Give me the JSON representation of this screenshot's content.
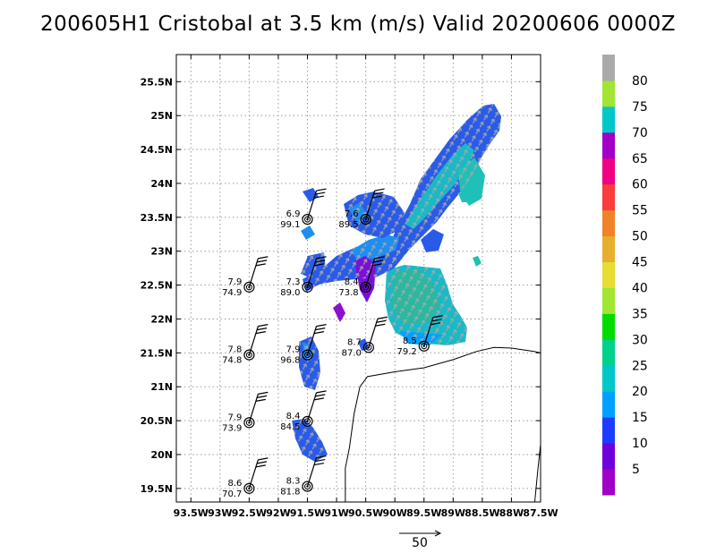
{
  "title": "200605H1 Cristobal at 3.5 km (m/s) Valid 20200606 0000Z",
  "chart_data": {
    "type": "map",
    "lon_range": [
      -93.75,
      -87.5
    ],
    "lat_range": [
      19.3,
      25.9
    ],
    "grid": true,
    "x_ticks": [
      {
        "lon": -93.5,
        "label": "93.5W"
      },
      {
        "lon": -93.0,
        "label": "93W"
      },
      {
        "lon": -92.5,
        "label": "92.5W"
      },
      {
        "lon": -92.0,
        "label": "92W"
      },
      {
        "lon": -91.5,
        "label": "91.5W"
      },
      {
        "lon": -91.0,
        "label": "91W"
      },
      {
        "lon": -90.5,
        "label": "90.5W"
      },
      {
        "lon": -90.0,
        "label": "90W"
      },
      {
        "lon": -89.5,
        "label": "89.5W"
      },
      {
        "lon": -89.0,
        "label": "89W"
      },
      {
        "lon": -88.5,
        "label": "88.5W"
      },
      {
        "lon": -88.0,
        "label": "88W"
      },
      {
        "lon": -87.5,
        "label": "87.5W"
      }
    ],
    "y_ticks": [
      {
        "lat": 19.5,
        "label": "19.5N"
      },
      {
        "lat": 20.0,
        "label": "20N"
      },
      {
        "lat": 20.5,
        "label": "20.5N"
      },
      {
        "lat": 21.0,
        "label": "21N"
      },
      {
        "lat": 21.5,
        "label": "21.5N"
      },
      {
        "lat": 22.0,
        "label": "22N"
      },
      {
        "lat": 22.5,
        "label": "22.5N"
      },
      {
        "lat": 23.0,
        "label": "23N"
      },
      {
        "lat": 23.5,
        "label": "23.5N"
      },
      {
        "lat": 24.0,
        "label": "24N"
      },
      {
        "lat": 24.5,
        "label": "24.5N"
      },
      {
        "lat": 25.0,
        "label": "25N"
      },
      {
        "lat": 25.5,
        "label": "25.5N"
      }
    ],
    "colorbar": {
      "labels": [
        "5",
        "10",
        "15",
        "20",
        "25",
        "30",
        "35",
        "40",
        "45",
        "50",
        "55",
        "60",
        "65",
        "70",
        "75",
        "80"
      ],
      "colors": [
        "#a000c8",
        "#6e00dc",
        "#1e3cff",
        "#00a0ff",
        "#00c8c8",
        "#00d28c",
        "#00dc00",
        "#a0e632",
        "#e6dc32",
        "#e6af2d",
        "#f08228",
        "#fa3c3c",
        "#f00082",
        "#a000c8",
        "#00c8c8",
        "#a0e632",
        "#aaaaaa"
      ]
    },
    "observations": [
      {
        "lat": 23.47,
        "lon": -91.5,
        "speed": "6.9",
        "pressure": "99.1"
      },
      {
        "lat": 23.47,
        "lon": -90.5,
        "speed": "7.6",
        "pressure": "89.5"
      },
      {
        "lat": 22.47,
        "lon": -92.5,
        "speed": "7.9",
        "pressure": "74.9"
      },
      {
        "lat": 22.47,
        "lon": -91.5,
        "speed": "7.3",
        "pressure": "89.0"
      },
      {
        "lat": 22.47,
        "lon": -90.5,
        "speed": "8.4",
        "pressure": "73.8"
      },
      {
        "lat": 21.47,
        "lon": -92.5,
        "speed": "7.8",
        "pressure": "74.8"
      },
      {
        "lat": 21.47,
        "lon": -91.5,
        "speed": "7.9",
        "pressure": "96.8"
      },
      {
        "lat": 21.58,
        "lon": -90.45,
        "speed": "8.7",
        "pressure": "87.0"
      },
      {
        "lat": 21.6,
        "lon": -89.5,
        "speed": "8.5",
        "pressure": "79.2"
      },
      {
        "lat": 20.47,
        "lon": -92.5,
        "speed": "7.9",
        "pressure": "73.9"
      },
      {
        "lat": 20.49,
        "lon": -91.5,
        "speed": "8.4",
        "pressure": "84.5"
      },
      {
        "lat": 19.5,
        "lon": -92.5,
        "speed": "8.6",
        "pressure": "70.7"
      },
      {
        "lat": 19.53,
        "lon": -91.5,
        "speed": "8.3",
        "pressure": "81.8"
      }
    ],
    "coastline": [
      [
        -90.85,
        19.3
      ],
      [
        -90.85,
        19.8
      ],
      [
        -90.78,
        20.1
      ],
      [
        -90.7,
        20.6
      ],
      [
        -90.6,
        21.0
      ],
      [
        -90.47,
        21.15
      ],
      [
        -90.0,
        21.22
      ],
      [
        -89.5,
        21.28
      ],
      [
        -89.0,
        21.4
      ],
      [
        -88.6,
        21.52
      ],
      [
        -88.3,
        21.58
      ],
      [
        -88.0,
        21.57
      ],
      [
        -87.6,
        21.52
      ],
      [
        -87.5,
        21.5
      ]
    ],
    "coastline_east": [
      [
        -87.5,
        20.15
      ],
      [
        -87.55,
        19.75
      ],
      [
        -87.6,
        19.3
      ]
    ],
    "reference_vector": {
      "label": "50"
    }
  }
}
